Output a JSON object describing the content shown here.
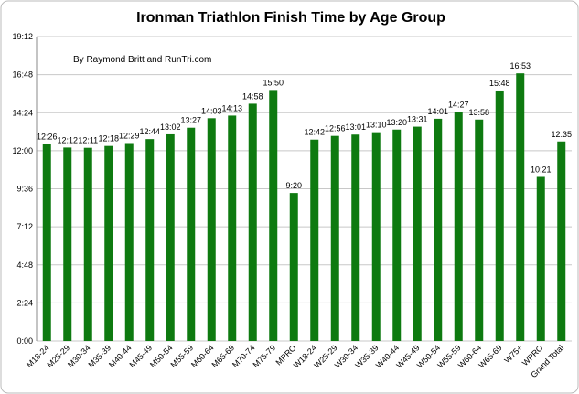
{
  "chart_data": {
    "type": "bar",
    "title": "Ironman Triathlon Finish Time by Age Group",
    "subtitle": "By Raymond Britt and RunTri.com",
    "categories": [
      "M18-24",
      "M25-29",
      "M30-34",
      "M35-39",
      "M40-44",
      "M45-49",
      "M50-54",
      "M55-59",
      "M60-64",
      "M65-69",
      "M70-74",
      "M75-79",
      "MPRO",
      "W18-24",
      "W25-29",
      "W30-34",
      "W35-39",
      "W40-44",
      "W45-49",
      "W50-54",
      "W55-59",
      "W60-64",
      "W65-69",
      "W75+",
      "WPRO",
      "Grand Total"
    ],
    "values": [
      746,
      732,
      731,
      738,
      749,
      764,
      782,
      807,
      843,
      853,
      898,
      950,
      560,
      762,
      776,
      781,
      790,
      800,
      811,
      841,
      867,
      838,
      948,
      1013,
      621,
      755
    ],
    "value_labels": [
      "12:26",
      "12:12",
      "12:11",
      "12:18",
      "12:29",
      "12:44",
      "13:02",
      "13:27",
      "14:03",
      "14:13",
      "14:58",
      "15:50",
      "9:20",
      "12:42",
      "12:56",
      "13:01",
      "13:10",
      "13:20",
      "13:31",
      "14:01",
      "14:27",
      "13:58",
      "15:48",
      "16:53",
      "10:21",
      "12:35"
    ],
    "color": "#0e7a10",
    "ylim": [
      0,
      1152
    ],
    "yticks": [
      {
        "value": 0,
        "label": "0:00"
      },
      {
        "value": 144,
        "label": "2:24"
      },
      {
        "value": 288,
        "label": "4:48"
      },
      {
        "value": 432,
        "label": "7:12"
      },
      {
        "value": 576,
        "label": "9:36"
      },
      {
        "value": 720,
        "label": "12:00"
      },
      {
        "value": 864,
        "label": "14:24"
      },
      {
        "value": 1008,
        "label": "16:48"
      },
      {
        "value": 1152,
        "label": "19:12"
      }
    ],
    "grid": true
  }
}
